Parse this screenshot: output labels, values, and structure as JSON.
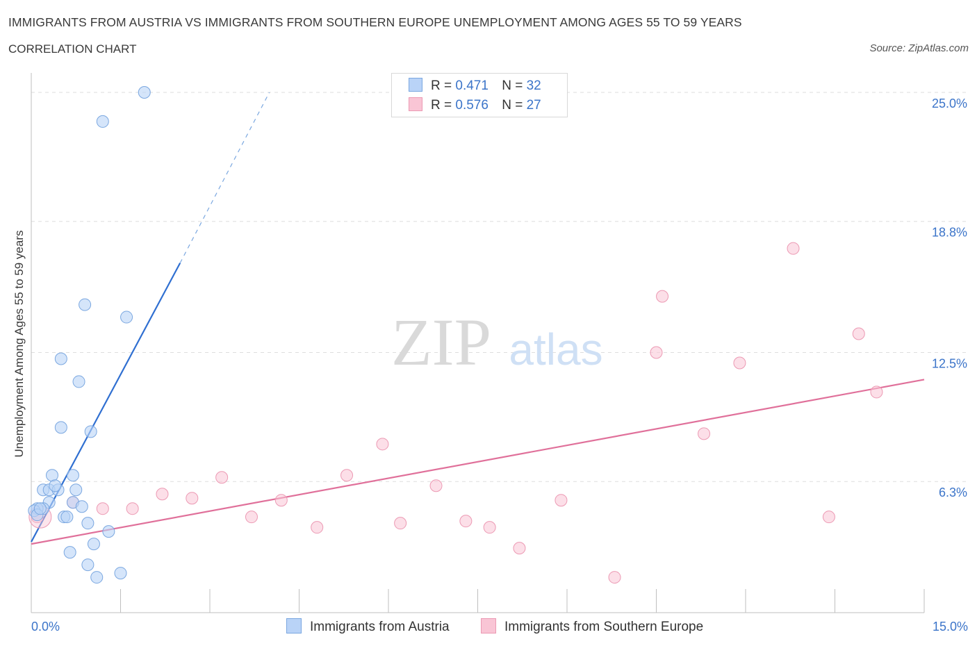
{
  "header": {
    "title": "IMMIGRANTS FROM AUSTRIA VS IMMIGRANTS FROM SOUTHERN EUROPE UNEMPLOYMENT AMONG AGES 55 TO 59 YEARS",
    "subtitle": "CORRELATION CHART",
    "source": "Source: ZipAtlas.com"
  },
  "watermark": {
    "zip": "ZIP",
    "atlas": "atlas"
  },
  "legend": {
    "r_label": "R =",
    "n_label": "N =",
    "austria": {
      "r": "0.471",
      "n": "32"
    },
    "southern_europe": {
      "r": "0.576",
      "n": "27"
    }
  },
  "colors": {
    "austria_fill": "#b9d3f7",
    "austria_stroke": "#7aa7e0",
    "austria_line": "#2f6fd1",
    "southern_fill": "#f9c5d5",
    "southern_stroke": "#ec99b3",
    "southern_line": "#e0709a",
    "tick_label": "#3b74c9",
    "grid": "#dddddd"
  },
  "chart_data": {
    "type": "scatter",
    "title": "IMMIGRANTS FROM AUSTRIA VS IMMIGRANTS FROM SOUTHERN EUROPE UNEMPLOYMENT AMONG AGES 55 TO 59 YEARS",
    "xlabel": "",
    "ylabel": "Unemployment Among Ages 55 to 59 years",
    "xlim": [
      0,
      15
    ],
    "ylim": [
      0,
      25.5
    ],
    "x_tick_labels": [
      "0.0%",
      "15.0%"
    ],
    "y_ticks": [
      6.3,
      12.5,
      18.8,
      25.0
    ],
    "y_tick_labels": [
      "6.3%",
      "12.5%",
      "18.8%",
      "25.0%"
    ],
    "series": [
      {
        "name": "Immigrants from Austria",
        "r": 0.471,
        "n": 32,
        "points": [
          [
            1.9,
            25.0
          ],
          [
            1.2,
            23.6
          ],
          [
            0.9,
            14.8
          ],
          [
            1.6,
            14.2
          ],
          [
            0.5,
            12.2
          ],
          [
            0.8,
            11.1
          ],
          [
            0.5,
            8.9
          ],
          [
            1.0,
            8.7
          ],
          [
            0.35,
            6.6
          ],
          [
            0.7,
            6.6
          ],
          [
            0.2,
            5.9
          ],
          [
            0.3,
            5.9
          ],
          [
            0.45,
            5.9
          ],
          [
            0.4,
            6.1
          ],
          [
            0.75,
            5.9
          ],
          [
            0.3,
            5.3
          ],
          [
            0.7,
            5.3
          ],
          [
            0.2,
            5.0
          ],
          [
            0.1,
            5.0
          ],
          [
            0.05,
            4.9
          ],
          [
            0.85,
            5.1
          ],
          [
            0.55,
            4.6
          ],
          [
            0.6,
            4.6
          ],
          [
            0.95,
            4.3
          ],
          [
            1.3,
            3.9
          ],
          [
            1.05,
            3.3
          ],
          [
            0.65,
            2.9
          ],
          [
            0.95,
            2.3
          ],
          [
            1.1,
            1.7
          ],
          [
            1.5,
            1.9
          ],
          [
            0.1,
            4.7
          ],
          [
            0.15,
            5.0
          ]
        ],
        "trend_solid": [
          [
            0.0,
            3.4
          ],
          [
            2.5,
            16.8
          ]
        ],
        "trend_dashed": [
          [
            2.5,
            16.8
          ],
          [
            4.0,
            25.0
          ]
        ]
      },
      {
        "name": "Immigrants from Southern Europe",
        "r": 0.576,
        "n": 27,
        "points": [
          [
            0.1,
            4.6
          ],
          [
            0.7,
            5.3
          ],
          [
            1.2,
            5.0
          ],
          [
            1.7,
            5.0
          ],
          [
            2.2,
            5.7
          ],
          [
            2.7,
            5.5
          ],
          [
            3.2,
            6.5
          ],
          [
            3.7,
            4.6
          ],
          [
            4.2,
            5.4
          ],
          [
            4.8,
            4.1
          ],
          [
            5.3,
            6.6
          ],
          [
            5.9,
            8.1
          ],
          [
            6.2,
            4.3
          ],
          [
            6.8,
            6.1
          ],
          [
            7.3,
            4.4
          ],
          [
            7.7,
            4.1
          ],
          [
            8.2,
            3.1
          ],
          [
            8.9,
            5.4
          ],
          [
            9.8,
            1.7
          ],
          [
            10.5,
            12.5
          ],
          [
            10.6,
            15.2
          ],
          [
            11.3,
            8.6
          ],
          [
            11.9,
            12.0
          ],
          [
            12.8,
            17.5
          ],
          [
            13.4,
            4.6
          ],
          [
            13.9,
            13.4
          ],
          [
            14.2,
            10.6
          ]
        ],
        "trend_solid": [
          [
            0.0,
            3.3
          ],
          [
            15.0,
            11.2
          ]
        ]
      }
    ]
  },
  "bottom_legend": {
    "austria_label": "Immigrants from Austria",
    "southern_label": "Immigrants from Southern Europe"
  }
}
